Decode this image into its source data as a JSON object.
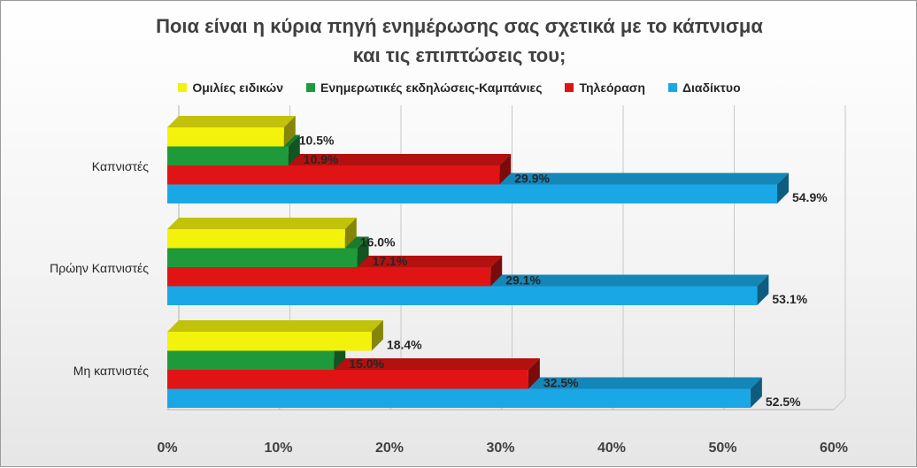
{
  "chart_data": {
    "type": "bar",
    "orientation": "horizontal",
    "title": "Ποια είναι η κύρια πηγή ενημέρωσης σας σχετικά με το κάπνισμα\nκαι τις επιπτώσεις του;",
    "categories": [
      "Καπνιστές",
      "Πρώην Καπνιστές",
      "Μη καπνιστές"
    ],
    "series": [
      {
        "name": "Ομιλίες ειδικών",
        "color": "#f2f20c",
        "values": [
          10.5,
          16.0,
          18.4
        ],
        "labels": [
          "10.5%",
          "16.0%",
          "18.4%"
        ]
      },
      {
        "name": "Ενημερωτικές εκδηλώσεις-Καμπάνιες",
        "color": "#1f9a3a",
        "values": [
          10.9,
          17.1,
          15.0
        ],
        "labels": [
          "10.9%",
          "17.1%",
          "15.0%"
        ]
      },
      {
        "name": "Τηλεόραση",
        "color": "#e01414",
        "values": [
          29.9,
          29.1,
          32.5
        ],
        "labels": [
          "29.9%",
          "29.1%",
          "32.5%"
        ]
      },
      {
        "name": "Διαδίκτυο",
        "color": "#1aa7e6",
        "values": [
          54.9,
          53.1,
          52.5
        ],
        "labels": [
          "54.9%",
          "53.1%",
          "52.5%"
        ]
      }
    ],
    "xlim": [
      0,
      60
    ],
    "x_ticks": [
      0,
      10,
      20,
      30,
      40,
      50,
      60
    ],
    "x_tick_labels": [
      "0%",
      "10%",
      "20%",
      "30%",
      "40%",
      "50%",
      "60%"
    ],
    "legend_position": "top",
    "grid": true
  }
}
